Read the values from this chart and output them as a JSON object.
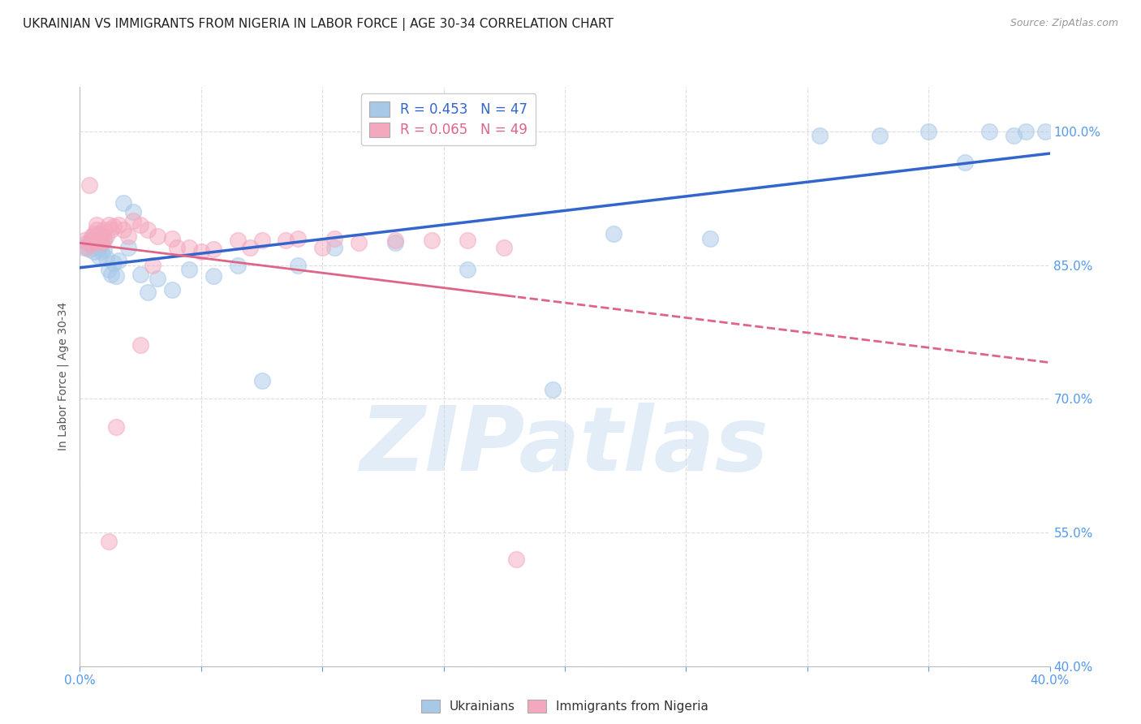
{
  "title": "UKRAINIAN VS IMMIGRANTS FROM NIGERIA IN LABOR FORCE | AGE 30-34 CORRELATION CHART",
  "source": "Source: ZipAtlas.com",
  "ylabel": "In Labor Force | Age 30-34",
  "xlim": [
    0.0,
    0.4
  ],
  "ylim": [
    0.4,
    1.05
  ],
  "xticks": [
    0.0,
    0.05,
    0.1,
    0.15,
    0.2,
    0.25,
    0.3,
    0.35,
    0.4
  ],
  "xtick_labels": [
    "0.0%",
    "",
    "",
    "",
    "",
    "",
    "",
    "",
    "40.0%"
  ],
  "yticks": [
    0.4,
    0.55,
    0.7,
    0.85,
    1.0
  ],
  "ytick_labels": [
    "40.0%",
    "55.0%",
    "70.0%",
    "85.0%",
    "100.0%"
  ],
  "blue_color": "#a8c8e8",
  "pink_color": "#f4a8be",
  "blue_line_color": "#3366cc",
  "pink_line_color": "#dd6688",
  "legend_text_blue": "R = 0.453   N = 47",
  "legend_text_pink": "R = 0.065   N = 49",
  "legend_blue_label": "Ukrainians",
  "legend_pink_label": "Immigrants from Nigeria",
  "watermark": "ZIPatlas",
  "blue_x": [
    0.002,
    0.003,
    0.004,
    0.005,
    0.005,
    0.006,
    0.006,
    0.007,
    0.007,
    0.008,
    0.008,
    0.009,
    0.009,
    0.01,
    0.01,
    0.011,
    0.012,
    0.013,
    0.014,
    0.015,
    0.016,
    0.018,
    0.02,
    0.022,
    0.025,
    0.028,
    0.032,
    0.038,
    0.045,
    0.055,
    0.065,
    0.075,
    0.09,
    0.105,
    0.13,
    0.16,
    0.195,
    0.22,
    0.26,
    0.305,
    0.33,
    0.35,
    0.365,
    0.375,
    0.385,
    0.39,
    0.398
  ],
  "blue_y": [
    0.87,
    0.875,
    0.868,
    0.88,
    0.872,
    0.878,
    0.865,
    0.882,
    0.875,
    0.87,
    0.86,
    0.875,
    0.865,
    0.88,
    0.868,
    0.858,
    0.845,
    0.84,
    0.852,
    0.838,
    0.855,
    0.92,
    0.87,
    0.91,
    0.84,
    0.82,
    0.835,
    0.822,
    0.845,
    0.838,
    0.85,
    0.72,
    0.85,
    0.87,
    0.875,
    0.845,
    0.71,
    0.885,
    0.88,
    0.995,
    0.995,
    1.0,
    0.965,
    1.0,
    0.995,
    1.0,
    1.0
  ],
  "pink_x": [
    0.002,
    0.003,
    0.004,
    0.004,
    0.005,
    0.005,
    0.006,
    0.006,
    0.007,
    0.007,
    0.008,
    0.008,
    0.009,
    0.009,
    0.01,
    0.01,
    0.011,
    0.012,
    0.013,
    0.014,
    0.016,
    0.018,
    0.02,
    0.022,
    0.025,
    0.028,
    0.032,
    0.038,
    0.045,
    0.055,
    0.065,
    0.075,
    0.09,
    0.105,
    0.13,
    0.16,
    0.03,
    0.04,
    0.05,
    0.07,
    0.085,
    0.1,
    0.115,
    0.145,
    0.175,
    0.025,
    0.015,
    0.012,
    0.18
  ],
  "pink_y": [
    0.878,
    0.87,
    0.94,
    0.875,
    0.882,
    0.878,
    0.885,
    0.875,
    0.89,
    0.895,
    0.878,
    0.885,
    0.875,
    0.883,
    0.89,
    0.878,
    0.882,
    0.895,
    0.89,
    0.893,
    0.895,
    0.89,
    0.882,
    0.9,
    0.895,
    0.89,
    0.882,
    0.88,
    0.87,
    0.868,
    0.878,
    0.878,
    0.88,
    0.88,
    0.878,
    0.878,
    0.85,
    0.87,
    0.865,
    0.87,
    0.878,
    0.87,
    0.875,
    0.878,
    0.87,
    0.76,
    0.668,
    0.54,
    0.52
  ],
  "grid_color": "#dddddd",
  "background_color": "#ffffff",
  "axis_color": "#5599ee",
  "title_fontsize": 11,
  "axis_label_fontsize": 10,
  "tick_fontsize": 11
}
